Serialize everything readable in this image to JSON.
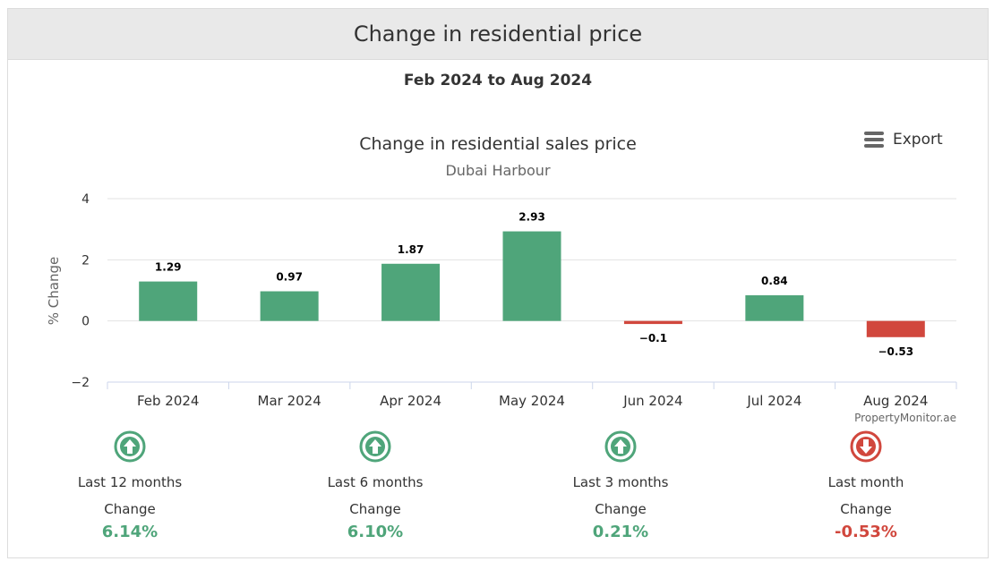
{
  "header": {
    "title": "Change in residential price"
  },
  "range_label": "Feb 2024 to Aug 2024",
  "export": {
    "label": "Export"
  },
  "credit": "PropertyMonitor.ae",
  "colors": {
    "positive": "#4fa57a",
    "negative": "#d1473d",
    "grid": "#e3e3e3",
    "text": "#333333"
  },
  "chart_data": {
    "type": "bar",
    "title": "Change in residential sales price",
    "subtitle": "Dubai Harbour",
    "xlabel": "",
    "ylabel": "% Change",
    "ylim": [
      -2,
      4
    ],
    "yticks": [
      4,
      2,
      0,
      -2
    ],
    "ytick_labels": [
      "4",
      "2",
      "0",
      "−2"
    ],
    "categories": [
      "Feb 2024",
      "Mar 2024",
      "Apr 2024",
      "May 2024",
      "Jun 2024",
      "Jul 2024",
      "Aug 2024"
    ],
    "values": [
      1.29,
      0.97,
      1.87,
      2.93,
      -0.1,
      0.84,
      -0.53
    ],
    "value_labels": [
      "1.29",
      "0.97",
      "1.87",
      "2.93",
      "−0.1",
      "0.84",
      "−0.53"
    ],
    "grid": true,
    "legend": "none"
  },
  "summary": [
    {
      "period": "Last 12 months",
      "change_label": "Change",
      "value": "6.14%",
      "direction": "up"
    },
    {
      "period": "Last 6 months",
      "change_label": "Change",
      "value": "6.10%",
      "direction": "up"
    },
    {
      "period": "Last 3 months",
      "change_label": "Change",
      "value": "0.21%",
      "direction": "up"
    },
    {
      "period": "Last month",
      "change_label": "Change",
      "value": "-0.53%",
      "direction": "down"
    }
  ]
}
